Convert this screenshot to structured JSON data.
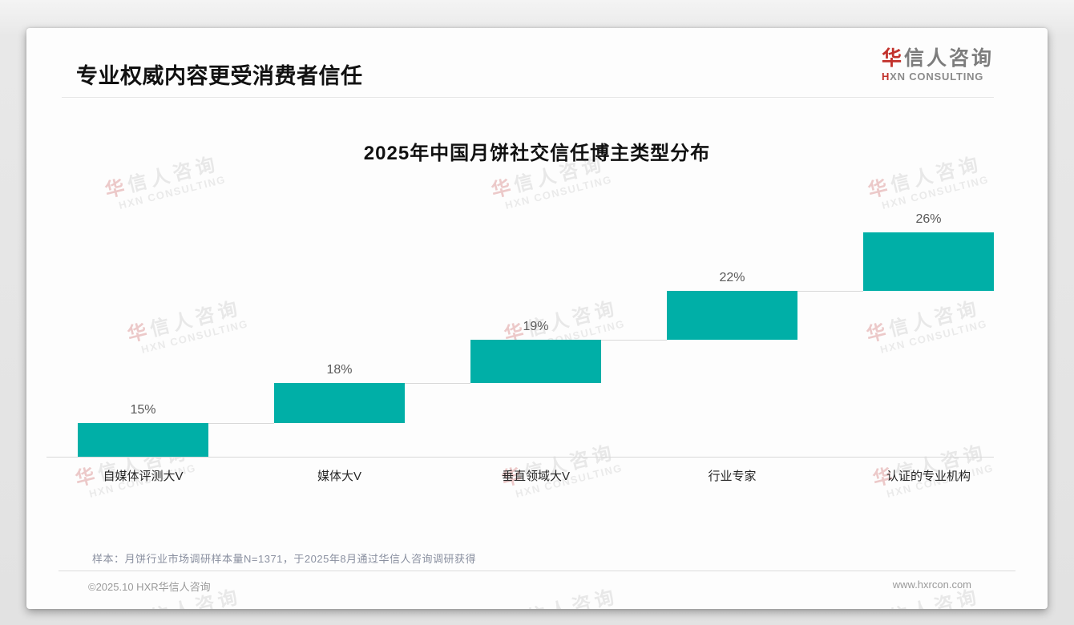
{
  "page": {
    "header": {
      "title": "专业权威内容更受消费者信任"
    },
    "brand": {
      "logo_zh_first": "华",
      "logo_zh_rest": "信人咨询",
      "logo_en_first": "H",
      "logo_en_rest": "XN CONSULTING"
    },
    "watermark": {
      "zh_first": "华",
      "zh_rest": "信人咨询",
      "en": "HXN CONSULTING"
    },
    "note": "样本：月饼行业市场调研样本量N=1371，于2025年8月通过华信人咨询调研获得",
    "footer": {
      "copyright": "©2025.10 HXR华信人咨询",
      "website": "www.hxrcon.com"
    }
  },
  "chart_data": {
    "type": "bar",
    "subtype": "cumulative-staircase",
    "title": "2025年中国月饼社交信任博主类型分布",
    "categories": [
      "自媒体评测大V",
      "媒体大V",
      "垂直领域大V",
      "行业专家",
      "认证的专业机构"
    ],
    "values": [
      15,
      18,
      19,
      22,
      26
    ],
    "value_labels": [
      "15%",
      "18%",
      "19%",
      "22%",
      "26%"
    ],
    "unit": "%",
    "total": 100,
    "bar_color": "#00AFA7",
    "value_label_color": "#5a5a5a",
    "category_label_color": "#262626",
    "baseline_color": "#d9d9d9",
    "connector_color": "#d9d9d9",
    "grid": false,
    "legend": false
  }
}
